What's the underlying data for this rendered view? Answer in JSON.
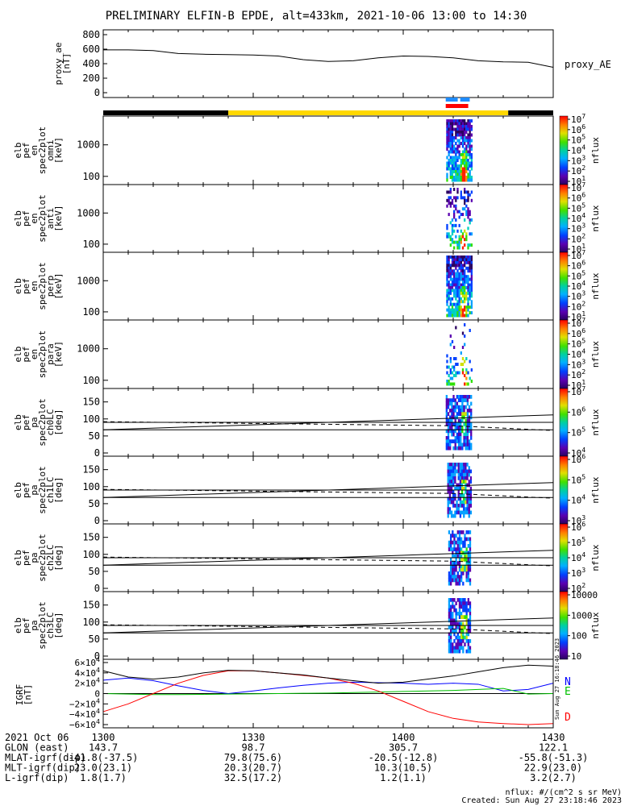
{
  "title": "PRELIMINARY ELFIN-B EPDE, alt=433km, 2021-10-06 13:00 to 14:30",
  "chart_data": [
    {
      "type": "line",
      "name": "proxy_ae",
      "ylabel_lines": [
        "proxy_ae",
        "[nT]"
      ],
      "right_label": "proxy_AE",
      "ylim": [
        0,
        800
      ],
      "y_ticks": [
        "800",
        "600",
        "400",
        "200",
        "0"
      ],
      "x_minutes": [
        0,
        5,
        10,
        15,
        20,
        25,
        30,
        35,
        40,
        45,
        50,
        55,
        60,
        65,
        70,
        75,
        80,
        85,
        90
      ],
      "values": [
        590,
        590,
        580,
        540,
        530,
        525,
        520,
        505,
        455,
        430,
        440,
        480,
        505,
        500,
        480,
        440,
        425,
        420,
        350
      ]
    },
    {
      "type": "bar",
      "name": "coverage-bars",
      "segments": [
        {
          "start": 0,
          "end": 25,
          "color": "#000000"
        },
        {
          "start": 25,
          "end": 81,
          "color": "#FFD800"
        },
        {
          "start": 81,
          "end": 90,
          "color": "#000000"
        }
      ],
      "science_blue": [
        [
          68.5,
          70.9
        ],
        [
          71.4,
          73.3
        ]
      ],
      "science_red": [
        [
          68.5,
          73.0
        ]
      ]
    },
    {
      "type": "heatmap",
      "name": "omni",
      "ylabel_lines": [
        "elb",
        "pef",
        "en",
        "spec2plot",
        "omni",
        "[keV]"
      ],
      "y_ticks": [
        "1000",
        "100"
      ],
      "colorbar_ticks": [
        "10^7",
        "10^6",
        "10^5",
        "10^4",
        "10^3",
        "10^2",
        "10^1"
      ],
      "colorbar_label": "nflux"
    },
    {
      "type": "heatmap",
      "name": "anti",
      "ylabel_lines": [
        "elb",
        "pef",
        "en",
        "spec2plot",
        "anti",
        "[keV]"
      ],
      "y_ticks": [
        "1000",
        "100"
      ],
      "colorbar_ticks": [
        "10^7",
        "10^6",
        "10^5",
        "10^4",
        "10^3",
        "10^2",
        "10^1"
      ],
      "colorbar_label": "nflux"
    },
    {
      "type": "heatmap",
      "name": "perp",
      "ylabel_lines": [
        "elb",
        "pef",
        "en",
        "spec2plot",
        "perp",
        "[keV]"
      ],
      "y_ticks": [
        "1000",
        "100"
      ],
      "colorbar_ticks": [
        "10^7",
        "10^6",
        "10^5",
        "10^4",
        "10^3",
        "10^2",
        "10^1"
      ],
      "colorbar_label": "nflux"
    },
    {
      "type": "heatmap",
      "name": "para",
      "ylabel_lines": [
        "elb",
        "pef",
        "en",
        "spec2plot",
        "para",
        "[keV]"
      ],
      "y_ticks": [
        "1000",
        "100"
      ],
      "colorbar_ticks": [
        "10^7",
        "10^6",
        "10^5",
        "10^4",
        "10^3",
        "10^2",
        "10^1"
      ],
      "colorbar_label": "nflux"
    },
    {
      "type": "heatmap",
      "name": "ch0LC",
      "ylabel_lines": [
        "elb",
        "pef",
        "pa",
        "spec2plot",
        "ch0LC",
        "[deg]"
      ],
      "y_ticks": [
        "150",
        "100",
        "50",
        "0"
      ],
      "ylim": [
        0,
        180
      ],
      "colorbar_ticks": [
        "10^7",
        "10^6",
        "10^5",
        "10^4"
      ],
      "colorbar_label": "nflux"
    },
    {
      "type": "heatmap",
      "name": "ch1LC",
      "ylabel_lines": [
        "elb",
        "pef",
        "pa",
        "spec2plot",
        "ch1LC",
        "[deg]"
      ],
      "y_ticks": [
        "150",
        "100",
        "50",
        "0"
      ],
      "ylim": [
        0,
        180
      ],
      "colorbar_ticks": [
        "10^6",
        "10^5",
        "10^4",
        "10^3"
      ],
      "colorbar_label": "nflux"
    },
    {
      "type": "heatmap",
      "name": "ch2LC",
      "ylabel_lines": [
        "elb",
        "pef",
        "pa",
        "spec2plot",
        "ch2LC",
        "[deg]"
      ],
      "y_ticks": [
        "150",
        "100",
        "50",
        "0"
      ],
      "ylim": [
        0,
        180
      ],
      "colorbar_ticks": [
        "10^6",
        "10^5",
        "10^4",
        "10^3",
        "10^2"
      ],
      "colorbar_label": "nflux"
    },
    {
      "type": "heatmap",
      "name": "ch3LC",
      "ylabel_lines": [
        "elb",
        "pef",
        "pa",
        "spec2plot",
        "ch3LC",
        "[deg]"
      ],
      "y_ticks": [
        "150",
        "100",
        "50",
        "0"
      ],
      "ylim": [
        0,
        180
      ],
      "colorbar_ticks": [
        "10000",
        "1000",
        "100",
        "10"
      ],
      "colorbar_label": "nflux"
    },
    {
      "type": "line",
      "name": "igrf",
      "ylabel_lines": [
        "IGRF",
        "[nT]"
      ],
      "y_ticks": [
        "6×10^4",
        "4×10^4",
        "2×10^4",
        "0",
        "−2×10^4",
        "−4×10^4",
        "−6×10^4"
      ],
      "ylim": [
        -60000,
        60000
      ],
      "x_minutes": [
        0,
        5,
        10,
        15,
        20,
        25,
        30,
        35,
        40,
        45,
        50,
        55,
        60,
        65,
        70,
        75,
        80,
        85,
        90
      ],
      "series": [
        {
          "name": "N",
          "color": "#0000ff",
          "values": [
            26000,
            30000,
            25000,
            15000,
            6000,
            0,
            5000,
            11000,
            16000,
            20000,
            22000,
            21000,
            20000,
            18000,
            20000,
            18000,
            5000,
            8000,
            20000
          ]
        },
        {
          "name": "E",
          "color": "#00c000",
          "values": [
            0,
            -1000,
            -2000,
            -2000,
            -1500,
            -1000,
            -500,
            0,
            500,
            1000,
            2000,
            3000,
            4000,
            5000,
            6000,
            8000,
            10000,
            -1000,
            0
          ]
        },
        {
          "name": "D",
          "color": "#ff0000",
          "values": [
            -35000,
            -20000,
            0,
            20000,
            35000,
            44000,
            44000,
            40000,
            35000,
            30000,
            20000,
            5000,
            -15000,
            -35000,
            -48000,
            -55000,
            -58000,
            -60000,
            -58000
          ]
        },
        {
          "name": "",
          "color": "#000000",
          "values": [
            44000,
            32000,
            28000,
            32000,
            40000,
            45000,
            44000,
            40000,
            36000,
            30000,
            25000,
            20000,
            22000,
            28000,
            34000,
            42000,
            50000,
            55000,
            53000
          ]
        }
      ]
    }
  ],
  "x_tick_labels": [
    "1300",
    "1330",
    "1400",
    "1430"
  ],
  "x_tick_minutes": [
    0,
    30,
    60,
    90
  ],
  "ephemeris": [
    {
      "label": "2021 Oct 06",
      "values": [
        "1300",
        "1330",
        "1400",
        "1430"
      ]
    },
    {
      "label": "GLON (east)",
      "values": [
        "143.7",
        "98.7",
        "305.7",
        "122.1"
      ]
    },
    {
      "label": "MLAT-igrf(dip)",
      "values": [
        "-41.8(-37.5)",
        "79.8(75.6)",
        "-20.5(-12.8)",
        "-55.8(-51.3)"
      ]
    },
    {
      "label": "MLT-igrf(dip)",
      "values": [
        "23.0(23.1)",
        "20.3(20.7)",
        "10.3(10.5)",
        "22.9(23.0)"
      ]
    },
    {
      "label": "L-igrf(dip)",
      "values": [
        "1.8(1.7)",
        "32.5(17.2)",
        "1.2(1.1)",
        "3.2(2.7)"
      ]
    }
  ],
  "side_stamp": "Sun Aug 27 16:18:46 2023",
  "footer_lines": [
    "nflux: #/(cm^2 s sr MeV)",
    "Created: Sun Aug 27 23:18:46 2023"
  ]
}
